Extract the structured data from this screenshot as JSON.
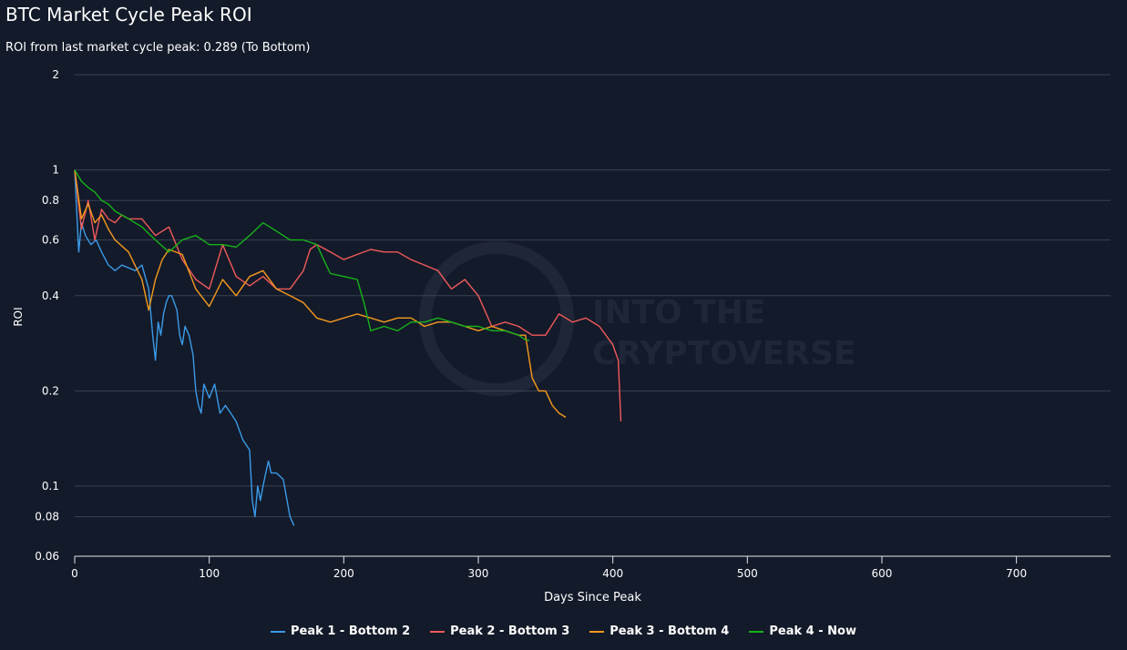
{
  "header": {
    "title": "BTC Market Cycle Peak ROI",
    "subtitle": "ROI from last market cycle peak: 0.289 (To Bottom)"
  },
  "watermark": {
    "line1": "INTO THE",
    "line2": "CRYPTOVERSE"
  },
  "chart_data": {
    "type": "line",
    "title": "BTC Market Cycle Peak ROI",
    "subtitle": "ROI from last market cycle peak: 0.289 (To Bottom)",
    "xlabel": "Days Since Peak",
    "ylabel": "ROI",
    "xlim": [
      0,
      770
    ],
    "ylim": [
      0.06,
      2
    ],
    "yscale": "log",
    "grid": true,
    "legend_position": "bottom",
    "x_ticks": [
      0,
      100,
      200,
      300,
      400,
      500,
      600,
      700
    ],
    "y_ticks": [
      0.06,
      0.08,
      0.1,
      0.2,
      0.4,
      0.6,
      0.8,
      1,
      2
    ],
    "series": [
      {
        "name": "Peak 1 - Bottom 2",
        "color": "#3a9be8",
        "x": [
          0,
          3,
          5,
          8,
          12,
          16,
          20,
          25,
          30,
          35,
          40,
          45,
          50,
          55,
          58,
          60,
          62,
          64,
          66,
          68,
          70,
          72,
          74,
          76,
          78,
          80,
          82,
          85,
          88,
          90,
          92,
          94,
          96,
          100,
          104,
          108,
          112,
          116,
          120,
          125,
          130,
          132,
          134,
          136,
          138,
          140,
          142,
          144,
          146,
          150,
          155,
          160,
          163
        ],
        "values": [
          1.0,
          0.55,
          0.68,
          0.62,
          0.58,
          0.6,
          0.55,
          0.5,
          0.48,
          0.5,
          0.49,
          0.48,
          0.5,
          0.42,
          0.3,
          0.25,
          0.33,
          0.3,
          0.35,
          0.38,
          0.4,
          0.4,
          0.38,
          0.36,
          0.3,
          0.28,
          0.32,
          0.3,
          0.26,
          0.2,
          0.18,
          0.17,
          0.21,
          0.19,
          0.21,
          0.17,
          0.18,
          0.17,
          0.16,
          0.14,
          0.13,
          0.09,
          0.08,
          0.1,
          0.09,
          0.1,
          0.11,
          0.12,
          0.11,
          0.11,
          0.105,
          0.08,
          0.075
        ]
      },
      {
        "name": "Peak 2 - Bottom 3",
        "color": "#f05a5a",
        "x": [
          0,
          5,
          10,
          15,
          20,
          25,
          30,
          35,
          40,
          50,
          60,
          70,
          80,
          90,
          100,
          110,
          120,
          130,
          140,
          150,
          160,
          170,
          175,
          180,
          190,
          200,
          210,
          220,
          230,
          240,
          250,
          260,
          270,
          280,
          290,
          300,
          310,
          320,
          330,
          340,
          350,
          360,
          370,
          380,
          390,
          400,
          404,
          406
        ],
        "values": [
          1.0,
          0.65,
          0.8,
          0.6,
          0.75,
          0.7,
          0.68,
          0.72,
          0.7,
          0.7,
          0.62,
          0.66,
          0.52,
          0.45,
          0.42,
          0.58,
          0.46,
          0.43,
          0.46,
          0.42,
          0.42,
          0.48,
          0.56,
          0.58,
          0.55,
          0.52,
          0.54,
          0.56,
          0.55,
          0.55,
          0.52,
          0.5,
          0.48,
          0.42,
          0.45,
          0.4,
          0.32,
          0.33,
          0.32,
          0.3,
          0.3,
          0.35,
          0.33,
          0.34,
          0.32,
          0.28,
          0.25,
          0.16
        ]
      },
      {
        "name": "Peak 3 - Bottom 4",
        "color": "#f59a1d",
        "x": [
          0,
          5,
          10,
          15,
          20,
          25,
          30,
          40,
          50,
          55,
          60,
          65,
          70,
          80,
          90,
          100,
          110,
          120,
          130,
          140,
          150,
          160,
          170,
          180,
          190,
          200,
          210,
          220,
          230,
          240,
          250,
          260,
          270,
          280,
          290,
          300,
          310,
          320,
          330,
          335,
          340,
          345,
          350,
          355,
          360,
          365
        ],
        "values": [
          1.0,
          0.7,
          0.78,
          0.68,
          0.72,
          0.65,
          0.6,
          0.55,
          0.45,
          0.36,
          0.45,
          0.52,
          0.56,
          0.54,
          0.42,
          0.37,
          0.45,
          0.4,
          0.46,
          0.48,
          0.42,
          0.4,
          0.38,
          0.34,
          0.33,
          0.34,
          0.35,
          0.34,
          0.33,
          0.34,
          0.34,
          0.32,
          0.33,
          0.33,
          0.32,
          0.31,
          0.32,
          0.31,
          0.3,
          0.3,
          0.22,
          0.2,
          0.2,
          0.18,
          0.17,
          0.165
        ]
      },
      {
        "name": "Peak 4 - Now",
        "color": "#16b31a",
        "x": [
          0,
          5,
          10,
          15,
          20,
          25,
          30,
          40,
          50,
          60,
          70,
          80,
          90,
          100,
          110,
          120,
          130,
          140,
          145,
          150,
          160,
          170,
          180,
          185,
          190,
          200,
          210,
          215,
          220,
          230,
          240,
          250,
          260,
          270,
          280,
          290,
          300,
          310,
          320,
          330,
          335,
          338
        ],
        "values": [
          1.0,
          0.92,
          0.88,
          0.85,
          0.8,
          0.78,
          0.74,
          0.7,
          0.66,
          0.6,
          0.55,
          0.6,
          0.62,
          0.58,
          0.58,
          0.57,
          0.62,
          0.68,
          0.66,
          0.64,
          0.6,
          0.6,
          0.58,
          0.52,
          0.47,
          0.46,
          0.45,
          0.38,
          0.31,
          0.32,
          0.31,
          0.33,
          0.33,
          0.34,
          0.33,
          0.32,
          0.32,
          0.31,
          0.31,
          0.3,
          0.29,
          0.289
        ]
      }
    ]
  }
}
